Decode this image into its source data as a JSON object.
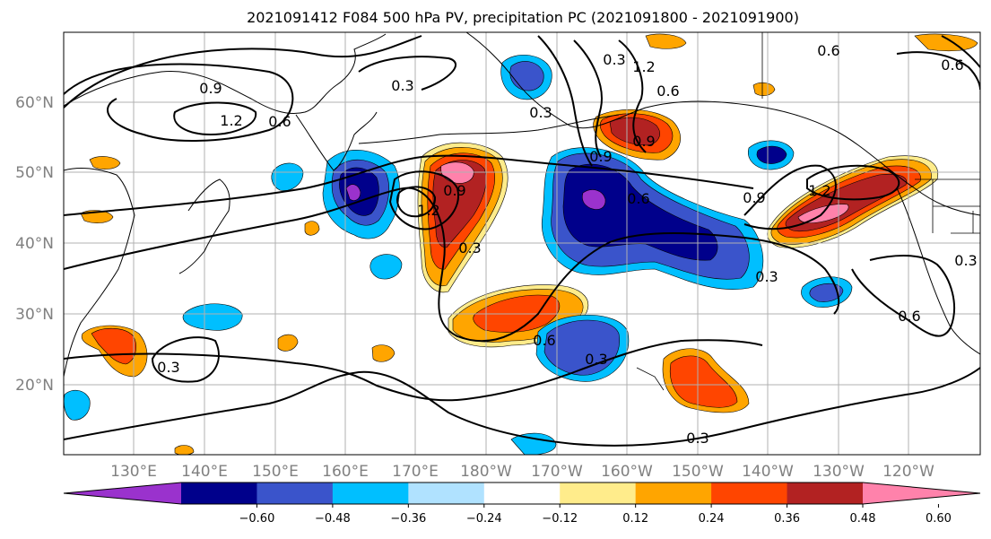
{
  "title": "2021091412 F084 500 hPa PV, precipitation PC (2021091800 - 2021091900)",
  "lat_labels": [
    "60°N",
    "50°N",
    "40°N",
    "30°N",
    "20°N"
  ],
  "lon_labels": [
    "130°E",
    "140°E",
    "150°E",
    "160°E",
    "170°E",
    "180°W",
    "170°W",
    "160°W",
    "150°W",
    "140°W",
    "130°W",
    "120°W"
  ],
  "colorbar": {
    "colors": [
      "#9a32cd",
      "#00008b",
      "#3a54cb",
      "#00bfff",
      "#b0e2ff",
      "#ffffff",
      "#ffec8b",
      "#ffa500",
      "#ff4500",
      "#b22222",
      "#ff82ab"
    ],
    "tick_labels": [
      "−0.60",
      "−0.48",
      "−0.36",
      "−0.24",
      "−0.12",
      "0.12",
      "0.24",
      "0.36",
      "0.48",
      "0.60"
    ]
  },
  "contour_labels": [
    "0.9",
    "1.2",
    "0.6",
    "0.3",
    "0.3",
    "0.9",
    "1.2",
    "0.3",
    "0.6",
    "0.3",
    "0.9",
    "0.6",
    "1.2",
    "0.6",
    "0.9",
    "1.2",
    "0.9",
    "0.3",
    "0.6",
    "0.6",
    "0.3",
    "0.3",
    "0.6",
    "0.3",
    "0.3"
  ]
}
